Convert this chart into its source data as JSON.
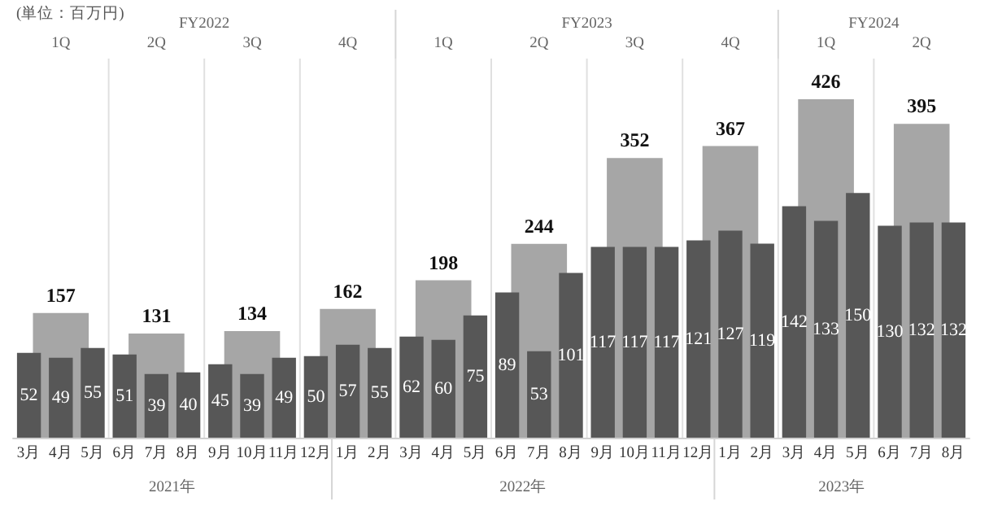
{
  "chart_data": {
    "type": "bar",
    "ylabel": "(単位：百万円)",
    "categories": [
      "3月",
      "4月",
      "5月",
      "6月",
      "7月",
      "8月",
      "9月",
      "10月",
      "11月",
      "12月",
      "1月",
      "2月",
      "3月",
      "4月",
      "5月",
      "6月",
      "7月",
      "8月",
      "9月",
      "10月",
      "11月",
      "12月",
      "1月",
      "2月",
      "3月",
      "4月",
      "5月",
      "6月",
      "7月",
      "8月"
    ],
    "series": [
      {
        "color": "#a6a6a6",
        "values": [
          null,
          157,
          null,
          null,
          131,
          null,
          null,
          134,
          null,
          null,
          162,
          null,
          null,
          198,
          null,
          null,
          244,
          null,
          null,
          352,
          null,
          null,
          367,
          null,
          null,
          426,
          null,
          null,
          395,
          null
        ]
      },
      {
        "color": "#575757",
        "axis": "y2",
        "values": [
          52,
          49,
          55,
          51,
          39,
          40,
          45,
          39,
          49,
          50,
          57,
          55,
          62,
          60,
          75,
          89,
          53,
          101,
          117,
          117,
          117,
          121,
          127,
          119,
          142,
          133,
          150,
          130,
          132,
          132
        ]
      }
    ],
    "annotations": [
      "FY2022",
      "FY2023",
      "FY2024",
      "1Q",
      "2Q",
      "3Q",
      "4Q",
      "1Q",
      "2Q",
      "3Q",
      "4Q",
      "1Q",
      "2Q",
      "2021年",
      "2022年",
      "2023年"
    ],
    "grid": "x",
    "data_labels": true
  }
}
